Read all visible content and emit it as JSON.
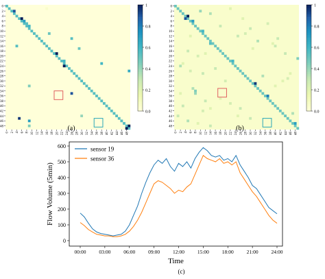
{
  "chart_data": [
    {
      "type": "heatmap",
      "panel_label": "(a)",
      "size": 50,
      "tick_labels": [
        "0",
        "2",
        "4",
        "6",
        "8",
        "10",
        "12",
        "14",
        "16",
        "18",
        "20",
        "22",
        "24",
        "26",
        "28",
        "30",
        "32",
        "34",
        "36",
        "38",
        "40",
        "42",
        "44",
        "46",
        "48"
      ],
      "colorbar_ticks": [
        "1",
        "0.8",
        "0.6",
        "0.4",
        "0.2",
        "0.0"
      ],
      "value_range": [
        0,
        1
      ],
      "diagonal_value": 0.55,
      "background_value": 0.0,
      "cells": [
        [
          2,
          3,
          0.9
        ],
        [
          5,
          6,
          1.0
        ],
        [
          6,
          7,
          0.7
        ],
        [
          7,
          8,
          0.55
        ],
        [
          19,
          20,
          1.0
        ],
        [
          24,
          23,
          1.0
        ],
        [
          48,
          49,
          1.0
        ],
        [
          49,
          48,
          1.0
        ],
        [
          1,
          16,
          0.05
        ],
        [
          8,
          9,
          0.6
        ],
        [
          11,
          17,
          0.5
        ],
        [
          13,
          26,
          0.55
        ],
        [
          16,
          4,
          0.55
        ],
        [
          17,
          29,
          0.5
        ],
        [
          23,
          38,
          0.6
        ],
        [
          26,
          49,
          0.65
        ],
        [
          35,
          26,
          0.9
        ],
        [
          32,
          9,
          0.45
        ],
        [
          45,
          5,
          0.95
        ],
        [
          46,
          9,
          0.7
        ],
        [
          48,
          9,
          0.45
        ],
        [
          22,
          23,
          0.6
        ],
        [
          44,
          30,
          0.4
        ]
      ],
      "highlights": [
        {
          "row": 36,
          "col": 21,
          "color": "#e06060"
        },
        {
          "row": 47,
          "col": 37,
          "color": "#2aa7b8"
        }
      ]
    },
    {
      "type": "heatmap",
      "panel_label": "(b)",
      "size": 50,
      "tick_labels": [
        "0",
        "2",
        "4",
        "6",
        "8",
        "10",
        "12",
        "14",
        "16",
        "18",
        "20",
        "22",
        "24",
        "26",
        "28",
        "30",
        "32",
        "34",
        "36",
        "38",
        "40",
        "42",
        "44",
        "46",
        "48"
      ],
      "colorbar_ticks": [
        "1",
        "0.8",
        "0.6",
        "0.4",
        "0.2",
        "0.0"
      ],
      "value_range": [
        0,
        1
      ],
      "diagonal_value": 0.5,
      "background_value": 0.05,
      "cells": [
        [
          4,
          5,
          1.0
        ],
        [
          5,
          4,
          0.9
        ],
        [
          6,
          7,
          0.7
        ],
        [
          10,
          11,
          0.6
        ],
        [
          15,
          14,
          0.55
        ],
        [
          22,
          23,
          0.6
        ],
        [
          31,
          32,
          0.95
        ],
        [
          36,
          37,
          0.8
        ],
        [
          47,
          48,
          0.7
        ],
        [
          2,
          10,
          0.4
        ],
        [
          3,
          14,
          0.35
        ],
        [
          8,
          18,
          0.3
        ],
        [
          9,
          30,
          0.3
        ],
        [
          12,
          25,
          0.3
        ],
        [
          14,
          33,
          0.35
        ],
        [
          16,
          40,
          0.3
        ],
        [
          18,
          5,
          0.3
        ],
        [
          19,
          44,
          0.3
        ],
        [
          21,
          49,
          0.45
        ],
        [
          24,
          2,
          0.35
        ],
        [
          25,
          16,
          0.3
        ],
        [
          27,
          11,
          0.3
        ],
        [
          28,
          35,
          0.35
        ],
        [
          30,
          20,
          0.25
        ],
        [
          33,
          7,
          0.35
        ],
        [
          34,
          8,
          0.45
        ],
        [
          35,
          8,
          0.4
        ],
        [
          38,
          12,
          0.3
        ],
        [
          40,
          3,
          0.3
        ],
        [
          41,
          26,
          0.3
        ],
        [
          43,
          47,
          0.35
        ],
        [
          44,
          1,
          0.3
        ],
        [
          45,
          30,
          0.3
        ],
        [
          46,
          5,
          0.35
        ],
        [
          48,
          14,
          0.3
        ],
        [
          13,
          41,
          0.3
        ],
        [
          11,
          28,
          0.25
        ],
        [
          20,
          9,
          0.25
        ],
        [
          26,
          6,
          0.25
        ],
        [
          39,
          22,
          0.25
        ],
        [
          42,
          11,
          0.25
        ],
        [
          7,
          37,
          0.25
        ],
        [
          29,
          45,
          0.25
        ],
        [
          1,
          22,
          0.2
        ],
        [
          17,
          31,
          0.2
        ],
        [
          23,
          3,
          0.2
        ],
        [
          32,
          40,
          0.2
        ],
        [
          37,
          18,
          0.2
        ],
        [
          44,
          25,
          0.2
        ],
        [
          47,
          9,
          0.2
        ],
        [
          12,
          6,
          0.2
        ],
        [
          15,
          39,
          0.2
        ],
        [
          27,
          46,
          0.2
        ],
        [
          35,
          2,
          0.2
        ],
        [
          41,
          14,
          0.2
        ],
        [
          5,
          27,
          0.2
        ],
        [
          19,
          12,
          0.2
        ],
        [
          30,
          43,
          0.2
        ]
      ],
      "highlights": [
        {
          "row": 35,
          "col": 19,
          "color": "#e06060"
        },
        {
          "row": 47,
          "col": 37,
          "color": "#2aa7b8"
        }
      ]
    },
    {
      "type": "line",
      "panel_label": "(c)",
      "xlabel": "Time",
      "ylabel": "Flow Volume (5min)",
      "x_range_hours": [
        0,
        24
      ],
      "ylim": [
        0,
        600
      ],
      "x_tick_labels": [
        "00:00",
        "03:00",
        "06:00",
        "09:00",
        "12:00",
        "15:00",
        "18:00",
        "21:00",
        "24:00"
      ],
      "y_tick_labels": [
        "0",
        "100",
        "200",
        "300",
        "400",
        "500",
        "600"
      ],
      "legend_position": "top-left",
      "series": [
        {
          "name": "sensor 19",
          "color": "#1f77b4",
          "x": [
            0,
            0.5,
            1,
            1.5,
            2,
            2.5,
            3,
            3.5,
            4,
            4.5,
            5,
            5.5,
            6,
            6.5,
            7,
            7.5,
            8,
            8.5,
            9,
            9.5,
            10,
            10.5,
            11,
            11.5,
            12,
            12.5,
            13,
            13.5,
            14,
            14.5,
            15,
            15.5,
            16,
            16.5,
            17,
            17.5,
            18,
            18.5,
            19,
            19.5,
            20,
            20.5,
            21,
            21.5,
            22,
            22.5,
            23,
            23.5,
            24
          ],
          "values": [
            175,
            150,
            110,
            75,
            55,
            45,
            40,
            35,
            30,
            35,
            40,
            60,
            100,
            160,
            220,
            300,
            370,
            430,
            480,
            510,
            490,
            520,
            470,
            440,
            490,
            470,
            500,
            460,
            520,
            560,
            590,
            570,
            540,
            530,
            540,
            510,
            520,
            500,
            540,
            480,
            440,
            400,
            350,
            330,
            290,
            250,
            210,
            190,
            170
          ]
        },
        {
          "name": "sensor 36",
          "color": "#ff7f0e",
          "x": [
            0,
            0.5,
            1,
            1.5,
            2,
            2.5,
            3,
            3.5,
            4,
            4.5,
            5,
            5.5,
            6,
            6.5,
            7,
            7.5,
            8,
            8.5,
            9,
            9.5,
            10,
            10.5,
            11,
            11.5,
            12,
            12.5,
            13,
            13.5,
            14,
            14.5,
            15,
            15.5,
            16,
            16.5,
            17,
            17.5,
            18,
            18.5,
            19,
            19.5,
            20,
            20.5,
            21,
            21.5,
            22,
            22.5,
            23,
            23.5,
            24
          ],
          "values": [
            115,
            95,
            70,
            55,
            40,
            35,
            30,
            30,
            25,
            25,
            30,
            40,
            60,
            90,
            130,
            180,
            240,
            300,
            360,
            380,
            370,
            350,
            330,
            300,
            320,
            310,
            340,
            360,
            420,
            480,
            540,
            520,
            510,
            500,
            520,
            490,
            500,
            480,
            500,
            430,
            390,
            350,
            310,
            280,
            240,
            200,
            160,
            130,
            110
          ]
        }
      ]
    }
  ]
}
